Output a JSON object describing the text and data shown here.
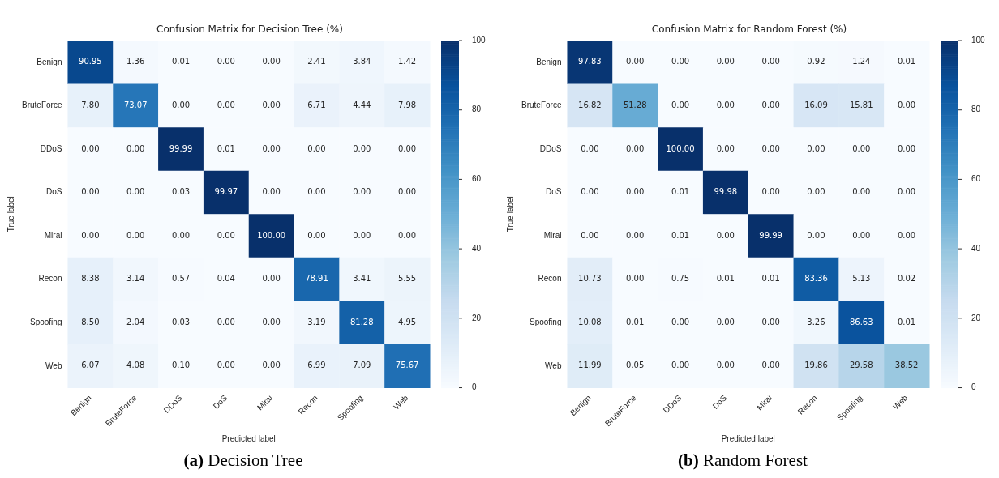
{
  "chart_data": [
    {
      "type": "heatmap",
      "title": "Confusion Matrix for Decision Tree (%)",
      "xlabel": "Predicted label",
      "ylabel": "True label",
      "annotations": [
        "(a) Decision Tree"
      ],
      "categories": [
        "Benign",
        "BruteForce",
        "DDoS",
        "DoS",
        "Mirai",
        "Recon",
        "Spoofing",
        "Web"
      ],
      "y_categories": [
        "Benign",
        "BruteForce",
        "DDoS",
        "DoS",
        "Mirai",
        "Recon",
        "Spoofing",
        "Web"
      ],
      "cells": [
        [
          90.95,
          1.36,
          0.01,
          0.0,
          0.0,
          2.41,
          3.84,
          1.42
        ],
        [
          7.8,
          73.07,
          0.0,
          0.0,
          0.0,
          6.71,
          4.44,
          7.98
        ],
        [
          0.0,
          0.0,
          99.99,
          0.01,
          0.0,
          0.0,
          0.0,
          0.0
        ],
        [
          0.0,
          0.0,
          0.03,
          99.97,
          0.0,
          0.0,
          0.0,
          0.0
        ],
        [
          0.0,
          0.0,
          0.0,
          0.0,
          100.0,
          0.0,
          0.0,
          0.0
        ],
        [
          8.38,
          3.14,
          0.57,
          0.04,
          0.0,
          78.91,
          3.41,
          5.55
        ],
        [
          8.5,
          2.04,
          0.03,
          0.0,
          0.0,
          3.19,
          81.28,
          4.95
        ],
        [
          6.07,
          4.08,
          0.1,
          0.0,
          0.0,
          6.99,
          7.09,
          75.67
        ]
      ],
      "cell_labels": [
        [
          "90.95",
          "1.36",
          "0.01",
          "0.00",
          "0.00",
          "2.41",
          "3.84",
          "1.42"
        ],
        [
          "7.80",
          "73.07",
          "0.00",
          "0.00",
          "0.00",
          "6.71",
          "4.44",
          "7.98"
        ],
        [
          "0.00",
          "0.00",
          "99.99",
          "0.01",
          "0.00",
          "0.00",
          "0.00",
          "0.00"
        ],
        [
          "0.00",
          "0.00",
          "0.03",
          "99.97",
          "0.00",
          "0.00",
          "0.00",
          "0.00"
        ],
        [
          "0.00",
          "0.00",
          "0.00",
          "0.00",
          "100.00",
          "0.00",
          "0.00",
          "0.00"
        ],
        [
          "8.38",
          "3.14",
          "0.57",
          "0.04",
          "0.00",
          "78.91",
          "3.41",
          "5.55"
        ],
        [
          "8.50",
          "2.04",
          "0.03",
          "0.00",
          "0.00",
          "3.19",
          "81.28",
          "4.95"
        ],
        [
          "6.07",
          "4.08",
          "0.10",
          "0.00",
          "0.00",
          "6.99",
          "7.09",
          "75.67"
        ]
      ],
      "clim": [
        0,
        100
      ],
      "cticks": [
        0,
        20,
        40,
        60,
        80,
        100
      ]
    },
    {
      "type": "heatmap",
      "title": "Confusion Matrix for Random Forest (%)",
      "xlabel": "Predicted label",
      "ylabel": "True label",
      "annotations": [
        "(b) Random Forest"
      ],
      "categories": [
        "Benign",
        "BruteForce",
        "DDoS",
        "DoS",
        "Mirai",
        "Recon",
        "Spoofing",
        "Web"
      ],
      "y_categories": [
        "Benign",
        "BruteForce",
        "DDoS",
        "DoS",
        "Mirai",
        "Recon",
        "Spoofing",
        "Web"
      ],
      "cells": [
        [
          97.83,
          0.0,
          0.0,
          0.0,
          0.0,
          0.92,
          1.24,
          0.01
        ],
        [
          16.82,
          51.28,
          0.0,
          0.0,
          0.0,
          16.09,
          15.81,
          0.0
        ],
        [
          0.0,
          0.0,
          100.0,
          0.0,
          0.0,
          0.0,
          0.0,
          0.0
        ],
        [
          0.0,
          0.0,
          0.01,
          99.98,
          0.0,
          0.0,
          0.0,
          0.0
        ],
        [
          0.0,
          0.0,
          0.01,
          0.0,
          99.99,
          0.0,
          0.0,
          0.0
        ],
        [
          10.73,
          0.0,
          0.75,
          0.01,
          0.01,
          83.36,
          5.13,
          0.02
        ],
        [
          10.08,
          0.01,
          0.0,
          0.0,
          0.0,
          3.26,
          86.63,
          0.01
        ],
        [
          11.99,
          0.05,
          0.0,
          0.0,
          0.0,
          19.86,
          29.58,
          38.52
        ]
      ],
      "cell_labels": [
        [
          "97.83",
          "0.00",
          "0.00",
          "0.00",
          "0.00",
          "0.92",
          "1.24",
          "0.01"
        ],
        [
          "16.82",
          "51.28",
          "0.00",
          "0.00",
          "0.00",
          "16.09",
          "15.81",
          "0.00"
        ],
        [
          "0.00",
          "0.00",
          "100.00",
          "0.00",
          "0.00",
          "0.00",
          "0.00",
          "0.00"
        ],
        [
          "0.00",
          "0.00",
          "0.01",
          "99.98",
          "0.00",
          "0.00",
          "0.00",
          "0.00"
        ],
        [
          "0.00",
          "0.00",
          "0.01",
          "0.00",
          "99.99",
          "0.00",
          "0.00",
          "0.00"
        ],
        [
          "10.73",
          "0.00",
          "0.75",
          "0.01",
          "0.01",
          "83.36",
          "5.13",
          "0.02"
        ],
        [
          "10.08",
          "0.01",
          "0.00",
          "0.00",
          "0.00",
          "3.26",
          "86.63",
          "0.01"
        ],
        [
          "11.99",
          "0.05",
          "0.00",
          "0.00",
          "0.00",
          "19.86",
          "29.58",
          "38.52"
        ]
      ],
      "clim": [
        0,
        100
      ],
      "cticks": [
        0,
        20,
        40,
        60,
        80,
        100
      ]
    }
  ]
}
